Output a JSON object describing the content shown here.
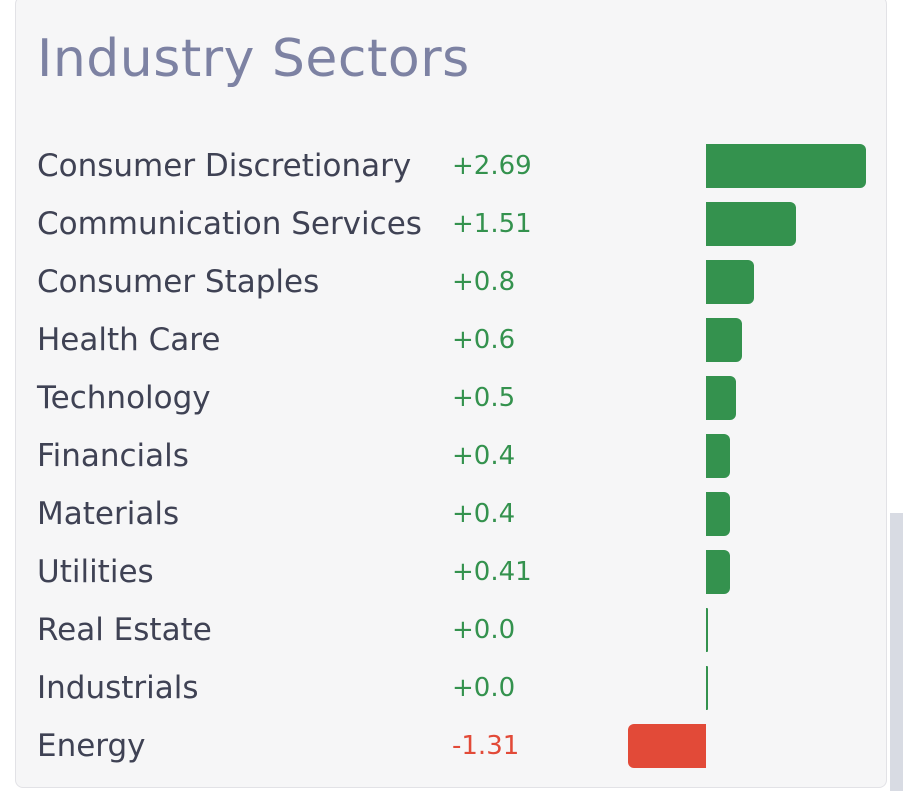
{
  "title": "Industry Sectors",
  "colors": {
    "positive": "#34924e",
    "negative": "#e24a38",
    "title": "#7d82a3",
    "label": "#3f4254"
  },
  "bar_scale_max": 2.69,
  "sectors": [
    {
      "name": "Consumer Discretionary",
      "value_text": "+2.69",
      "value": 2.69
    },
    {
      "name": "Communication Services",
      "value_text": "+1.51",
      "value": 1.51
    },
    {
      "name": "Consumer Staples",
      "value_text": "+0.8",
      "value": 0.8
    },
    {
      "name": "Health Care",
      "value_text": "+0.6",
      "value": 0.6
    },
    {
      "name": "Technology",
      "value_text": "+0.5",
      "value": 0.5
    },
    {
      "name": "Financials",
      "value_text": "+0.4",
      "value": 0.4
    },
    {
      "name": "Materials",
      "value_text": "+0.4",
      "value": 0.4
    },
    {
      "name": "Utilities",
      "value_text": "+0.41",
      "value": 0.41
    },
    {
      "name": "Real Estate",
      "value_text": "+0.0",
      "value": 0.0
    },
    {
      "name": "Industrials",
      "value_text": "+0.0",
      "value": 0.0
    },
    {
      "name": "Energy",
      "value_text": "-1.31",
      "value": -1.31
    }
  ]
}
